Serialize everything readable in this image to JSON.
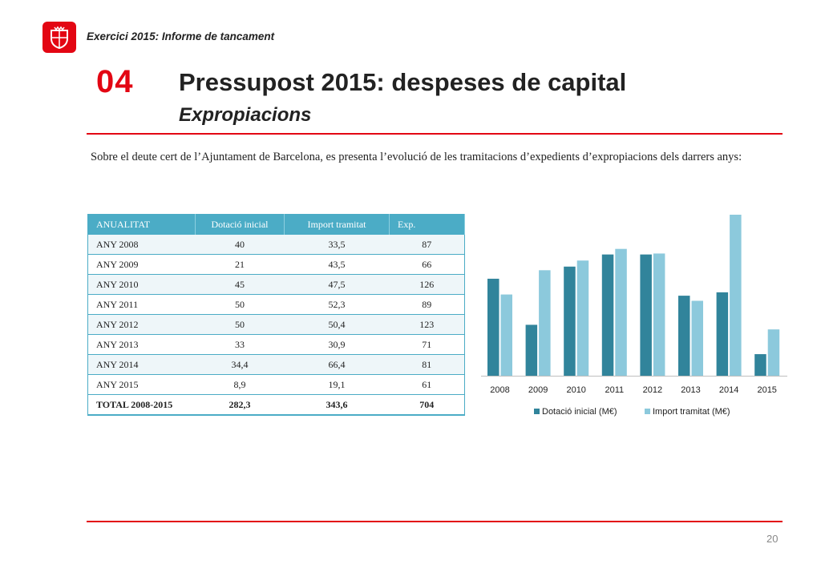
{
  "header": {
    "text": "Exercici 2015: Informe de tancament"
  },
  "section": {
    "number": "04",
    "title": "Pressupost 2015: despeses de capital",
    "subtitle": "Expropiacions"
  },
  "intro": "Sobre el deute cert de l’Ajuntament de Barcelona, es presenta l’evolució de les tramitacions d’expedients d’expropiacions dels darrers anys:",
  "table": {
    "headers": [
      "ANUALITAT",
      "Dotació inicial",
      "Import tramitat",
      "Exp."
    ],
    "rows": [
      [
        "ANY 2008",
        "40",
        "33,5",
        "87"
      ],
      [
        "ANY 2009",
        "21",
        "43,5",
        "66"
      ],
      [
        "ANY 2010",
        "45",
        "47,5",
        "126"
      ],
      [
        "ANY 2011",
        "50",
        "52,3",
        "89"
      ],
      [
        "ANY 2012",
        "50",
        "50,4",
        "123"
      ],
      [
        "ANY 2013",
        "33",
        "30,9",
        "71"
      ],
      [
        "ANY 2014",
        "34,4",
        "66,4",
        "81"
      ],
      [
        "ANY 2015",
        "8,9",
        "19,1",
        "61"
      ]
    ],
    "total": [
      "TOTAL 2008-2015",
      "282,3",
      "343,6",
      "704"
    ]
  },
  "chart_data": {
    "type": "bar",
    "categories": [
      "2008",
      "2009",
      "2010",
      "2011",
      "2012",
      "2013",
      "2014",
      "2015"
    ],
    "series": [
      {
        "name": "Dotació inicial (M€)",
        "values": [
          40,
          21,
          45,
          50,
          50,
          33,
          34.4,
          8.9
        ],
        "color": "#31849b"
      },
      {
        "name": "Import tramitat (M€)",
        "values": [
          33.5,
          43.5,
          47.5,
          52.3,
          50.4,
          30.9,
          66.4,
          19.1
        ],
        "color": "#8cc9dc"
      }
    ],
    "ylim": [
      0,
      66.4
    ],
    "grid": false,
    "legend": "bottom"
  },
  "page_number": "20",
  "colors": {
    "accent": "#e30613",
    "table_header": "#4bacc6"
  }
}
